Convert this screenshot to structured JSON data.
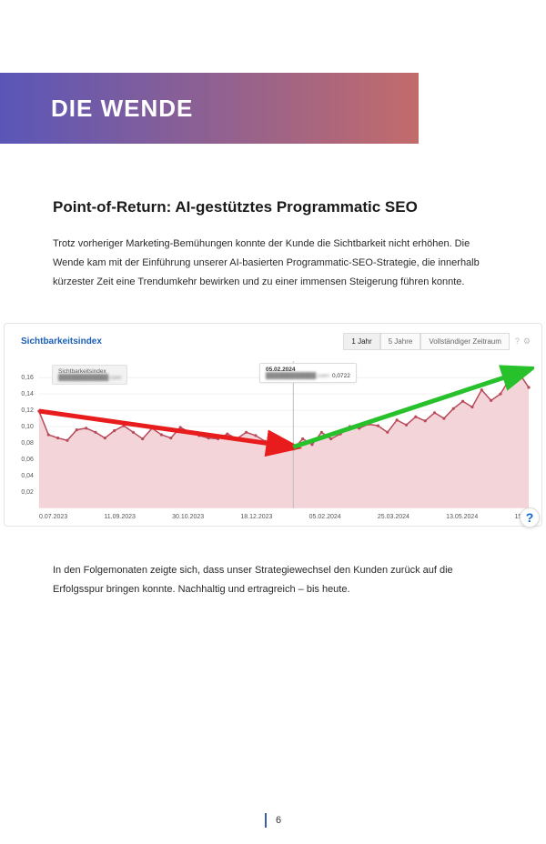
{
  "banner": {
    "title": "DIE WENDE"
  },
  "section": {
    "subtitle": "Point-of-Return: AI-gestütztes Programmatic SEO",
    "intro": "Trotz vorheriger Marketing-Bemühungen konnte der Kunde die Sichtbarkeit nicht erhöhen. Die Wende kam mit der Einführung unserer AI-basierten Programmatic-SEO-Strategie, die innerhalb kürzester Zeit eine Trendumkehr bewirken und zu einer immensen Steigerung führen konnte.",
    "outro": "In den Folgemonaten zeigte sich, dass unser Strategiewechsel den Kunden zurück auf die Erfolgsspur bringen konnte. Nachhaltig und ertragreich – bis heute."
  },
  "chart": {
    "type": "area",
    "title": "Sichtbarkeitsindex",
    "tabs": [
      "1 Jahr",
      "5 Jahre",
      "Vollständiger Zeitraum"
    ],
    "active_tab_index": 0,
    "icon_labels": [
      "?",
      "⚙"
    ],
    "y_ticks": [
      "0,16",
      "0,14",
      "0,12",
      "0,10",
      "0,08",
      "0,06",
      "0,04",
      "0,02"
    ],
    "ylim": [
      0,
      0.18
    ],
    "x_labels": [
      "0.07.2023",
      "11.09.2023",
      "30.10.2023",
      "18.12.2023",
      "05.02.2024",
      "25.03.2024",
      "13.05.2024",
      "15.07"
    ],
    "legend": {
      "heading": "Sichtbarkeitsindex",
      "blurred_line": "████████████.com"
    },
    "tooltip": {
      "date": "05.02.2024",
      "blurred": "████████████.com:",
      "value": "0,0722"
    },
    "help_glyph": "?",
    "colors": {
      "background": "#ffffff",
      "plot_bg": "#ffffff",
      "area_fill": "#f3d4d8",
      "line": "#b94a5a",
      "marker": "#b94a5a",
      "grid": "#f0f0f0",
      "down_arrow": "#e81c1c",
      "up_arrow": "#27c22b",
      "title_color": "#1a5fb4",
      "tick_text": "#555555"
    },
    "line_width": 1.5,
    "marker_radius": 1.6,
    "series": {
      "x": [
        0,
        1,
        2,
        3,
        4,
        5,
        6,
        7,
        8,
        9,
        10,
        11,
        12,
        13,
        14,
        15,
        16,
        17,
        18,
        19,
        20,
        21,
        22,
        23,
        24,
        25,
        26,
        27,
        28,
        29,
        30,
        31,
        32,
        33,
        34,
        35,
        36,
        37,
        38,
        39,
        40,
        41,
        42,
        43,
        44,
        45,
        46,
        47,
        48,
        49,
        50,
        51,
        52
      ],
      "y": [
        0.119,
        0.09,
        0.086,
        0.083,
        0.096,
        0.098,
        0.093,
        0.086,
        0.095,
        0.101,
        0.093,
        0.085,
        0.098,
        0.09,
        0.086,
        0.099,
        0.093,
        0.089,
        0.086,
        0.085,
        0.091,
        0.085,
        0.093,
        0.089,
        0.082,
        0.079,
        0.078,
        0.0722,
        0.085,
        0.078,
        0.093,
        0.085,
        0.091,
        0.1,
        0.098,
        0.103,
        0.101,
        0.093,
        0.108,
        0.102,
        0.112,
        0.107,
        0.117,
        0.11,
        0.122,
        0.131,
        0.124,
        0.145,
        0.132,
        0.14,
        0.159,
        0.165,
        0.148
      ]
    },
    "tooltip_x_index": 27,
    "down_arrow": {
      "from_index": 0,
      "to_index": 27,
      "from_y": 0.119,
      "to_y": 0.075
    },
    "up_arrow": {
      "from_index": 27,
      "to_index": 52,
      "from_y": 0.075,
      "to_y": 0.17
    }
  },
  "page": {
    "number": "6"
  }
}
